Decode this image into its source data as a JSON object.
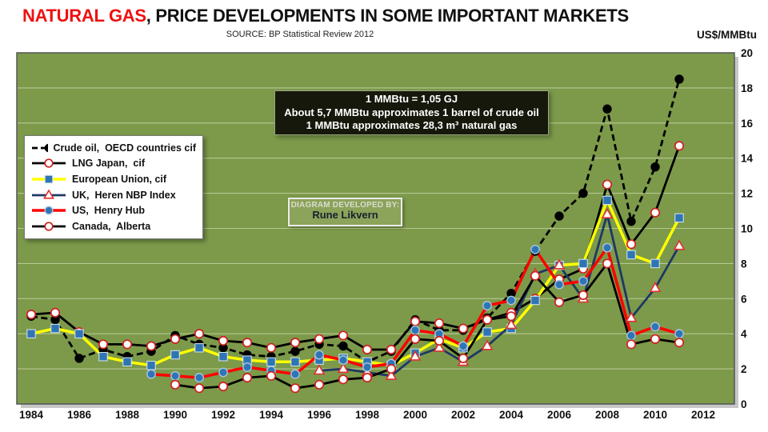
{
  "header": {
    "title_red": "NATURAL GAS",
    "title_rest": ", PRICE DEVELOPMENTS IN SOME IMPORTANT MARKETS",
    "source": "SOURCE: BP Statistical Review 2012",
    "unit": "US$/MMBtu"
  },
  "annotation_box": {
    "line1": "1 MMBtu = 1,05 GJ",
    "line2": "About 5,7 MMBtu approximates 1 barrel of crude oil",
    "line3": "1 MMBtu approximates 28,3 m³ natural gas"
  },
  "credit_box": {
    "line1": "DIAGRAM DEVELOPED BY:",
    "line2": "Rune Likvern"
  },
  "colors": {
    "page_bg": "#ffffff",
    "plot_bg": "#7c9a4a",
    "gridline": "#c2cfa0",
    "plot_border": "#54555a",
    "title_red": "#ee1111",
    "text": "#111111",
    "yellow": "#ffff00",
    "red": "#ff0000",
    "navy": "#1f3864",
    "blue_marker": "#2e75b6",
    "marker_red_rim": "#cf2020"
  },
  "chart_data": {
    "type": "line",
    "title": "NATURAL GAS, PRICE DEVELOPMENTS IN SOME IMPORTANT MARKETS",
    "subtitle": "SOURCE: BP Statistical Review 2012",
    "ylabel": "US$/MMBtu",
    "xlabel": "",
    "ylim": [
      0,
      20
    ],
    "xlim": [
      1983.4,
      2013.3
    ],
    "y_ticks": [
      0,
      2,
      4,
      6,
      8,
      10,
      12,
      14,
      16,
      18,
      20
    ],
    "x_tick_labels": [
      1984,
      1986,
      1988,
      1990,
      1992,
      1994,
      1996,
      1998,
      2000,
      2002,
      2004,
      2006,
      2008,
      2010,
      2012
    ],
    "grid": "horizontal",
    "legend_position": "upper-left",
    "x": [
      1984,
      1985,
      1986,
      1987,
      1988,
      1989,
      1990,
      1991,
      1992,
      1993,
      1994,
      1995,
      1996,
      1997,
      1998,
      1999,
      2000,
      2001,
      2002,
      2003,
      2004,
      2005,
      2006,
      2007,
      2008,
      2009,
      2010,
      2011
    ],
    "series": [
      {
        "name": "Crude oil,  OECD countries cif",
        "line_color": "#000000",
        "line_width": 2.8,
        "dash": "8 4.5",
        "marker": "circle",
        "marker_fill": "#000000",
        "marker_stroke": "#000000",
        "marker_stroke_width": 1,
        "values": [
          5.0,
          4.8,
          2.6,
          3.1,
          2.7,
          3.0,
          3.9,
          3.4,
          3.2,
          2.8,
          2.7,
          3.0,
          3.4,
          3.3,
          2.4,
          3.0,
          4.8,
          4.2,
          4.2,
          4.9,
          6.3,
          8.7,
          10.7,
          12.0,
          16.8,
          10.4,
          13.5,
          18.5
        ]
      },
      {
        "name": "LNG Japan,  cif",
        "line_color": "#000000",
        "line_width": 2.8,
        "dash": null,
        "marker": "circle",
        "marker_fill": "#ffffff",
        "marker_stroke": "#cf2020",
        "marker_stroke_width": 1.7,
        "values": [
          5.1,
          5.2,
          4.1,
          3.4,
          3.4,
          3.3,
          3.7,
          4.0,
          3.6,
          3.5,
          3.2,
          3.5,
          3.7,
          3.9,
          3.1,
          3.1,
          4.7,
          4.6,
          4.3,
          4.8,
          5.2,
          6.0,
          7.1,
          7.7,
          12.5,
          9.1,
          10.9,
          14.7
        ]
      },
      {
        "name": "European Union, cif",
        "line_color": "#ffff00",
        "line_width": 3.5,
        "dash": null,
        "marker": "square",
        "marker_fill": "#2e75b6",
        "marker_stroke": "#d9e6f2",
        "marker_stroke_width": 1,
        "values": [
          4.0,
          4.3,
          4.0,
          2.7,
          2.4,
          2.2,
          2.8,
          3.2,
          2.7,
          2.5,
          2.4,
          2.4,
          2.5,
          2.6,
          2.4,
          2.2,
          2.9,
          3.7,
          3.2,
          4.1,
          4.3,
          5.9,
          7.9,
          8.0,
          11.6,
          8.5,
          8.0,
          10.6
        ]
      },
      {
        "name": "UK,  Heren NBP Index",
        "line_color": "#1f3864",
        "line_width": 2.8,
        "dash": null,
        "marker": "triangle",
        "marker_fill": "#ffffff",
        "marker_stroke": "#e03030",
        "marker_stroke_width": 1.6,
        "values": [
          null,
          null,
          null,
          null,
          null,
          null,
          null,
          null,
          null,
          null,
          null,
          null,
          1.9,
          2.0,
          1.8,
          1.6,
          2.7,
          3.2,
          2.4,
          3.3,
          4.5,
          7.4,
          7.9,
          6.0,
          10.8,
          4.9,
          6.6,
          9.0
        ]
      },
      {
        "name": "US,  Henry Hub",
        "line_color": "#ff0000",
        "line_width": 3.5,
        "dash": null,
        "marker": "circle",
        "marker_fill": "#2e75b6",
        "marker_stroke": "#a8c6e0",
        "marker_stroke_width": 1.4,
        "values": [
          null,
          null,
          null,
          null,
          null,
          1.7,
          1.6,
          1.5,
          1.8,
          2.1,
          1.9,
          1.7,
          2.8,
          2.5,
          2.1,
          2.3,
          4.2,
          4.0,
          3.3,
          5.6,
          5.9,
          8.8,
          6.8,
          7.0,
          8.9,
          3.9,
          4.4,
          4.0
        ]
      },
      {
        "name": "Canada,  Alberta",
        "line_color": "#000000",
        "line_width": 2.8,
        "dash": null,
        "marker": "circle",
        "marker_fill": "#ffffff",
        "marker_stroke": "#cf2020",
        "marker_stroke_width": 1.7,
        "values": [
          null,
          null,
          null,
          null,
          null,
          null,
          1.1,
          0.9,
          1.0,
          1.5,
          1.6,
          0.9,
          1.1,
          1.4,
          1.5,
          2.0,
          3.7,
          3.6,
          2.6,
          4.8,
          5.0,
          7.3,
          5.8,
          6.2,
          8.0,
          3.4,
          3.7,
          3.5
        ]
      }
    ]
  }
}
